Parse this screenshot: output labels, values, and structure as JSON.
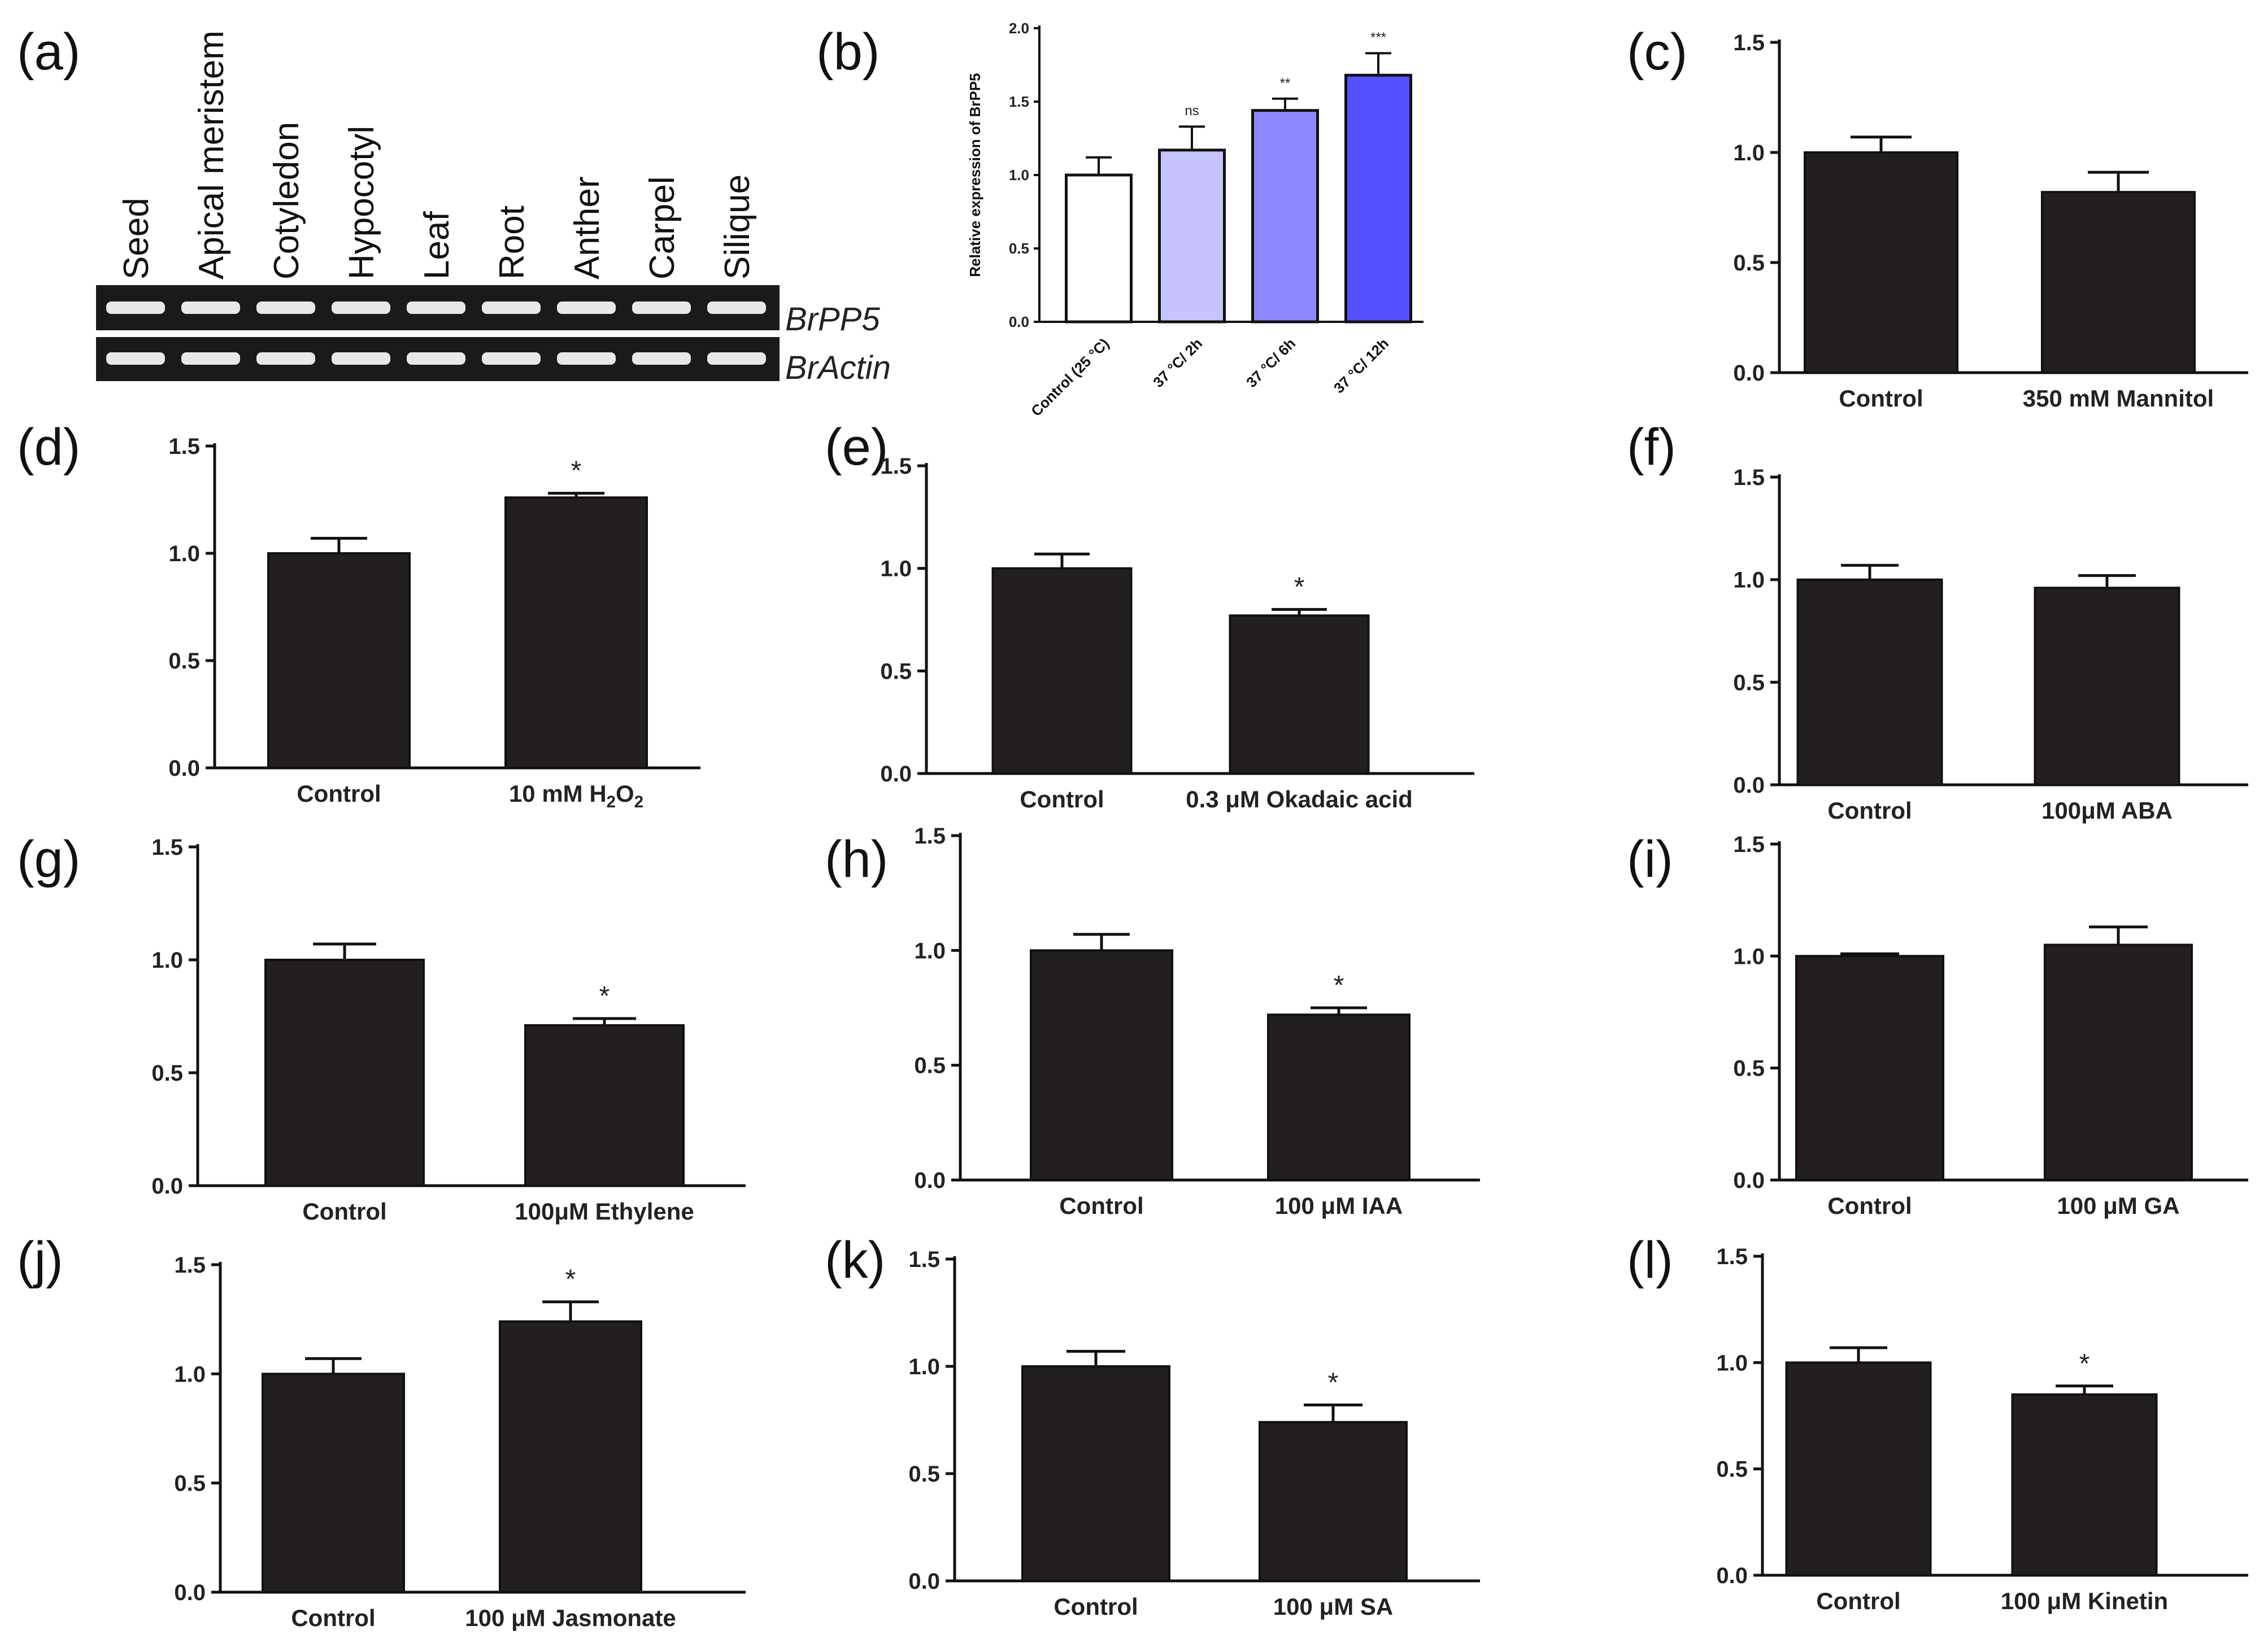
{
  "panel_a": {
    "letter": "(a)",
    "lanes": [
      "Seed",
      "Apical meristem",
      "Cotyledon",
      "Hypocotyl",
      "Leaf",
      "Root",
      "Anther",
      "Carpel",
      "Silique"
    ],
    "genes": [
      "BrPP5",
      "BrActin"
    ]
  },
  "chart_data": [
    {
      "id": "b",
      "letter": "(b)",
      "type": "bar",
      "ylabel": "Relative expression of BrPP5",
      "categories": [
        "Control (25 °C)",
        "37 °C/ 2h",
        "37 °C/ 6h",
        "37 °C/ 12h"
      ],
      "values": [
        1.0,
        1.17,
        1.44,
        1.68
      ],
      "errors": [
        0.12,
        0.16,
        0.08,
        0.15
      ],
      "annotations": [
        "",
        "ns",
        "**",
        "***"
      ],
      "colors": [
        "#ffffff",
        "#c6c3ff",
        "#8d88ff",
        "#5550ff"
      ],
      "ylim": [
        0,
        2.0
      ],
      "yticks": [
        "0.0",
        "0.5",
        "1.0",
        "1.5",
        "2.0"
      ]
    },
    {
      "id": "c",
      "letter": "(c)",
      "type": "bar",
      "categories": [
        "Control",
        "350 mM Mannitol"
      ],
      "values": [
        1.0,
        0.82
      ],
      "errors": [
        0.07,
        0.09
      ],
      "annotations": [
        "",
        ""
      ],
      "ylim": [
        0,
        1.5
      ],
      "yticks": [
        "0.0",
        "0.5",
        "1.0",
        "1.5"
      ]
    },
    {
      "id": "d",
      "letter": "(d)",
      "type": "bar",
      "categories": [
        "Control",
        "10 mM H2O2"
      ],
      "values": [
        1.0,
        1.26
      ],
      "errors": [
        0.07,
        0.02
      ],
      "annotations": [
        "",
        "*"
      ],
      "ylim": [
        0,
        1.5
      ],
      "yticks": [
        "0.0",
        "0.5",
        "1.0",
        "1.5"
      ]
    },
    {
      "id": "e",
      "letter": "(e)",
      "type": "bar",
      "categories": [
        "Control",
        "0.3 μM Okadaic acid"
      ],
      "values": [
        1.0,
        0.77
      ],
      "errors": [
        0.07,
        0.03
      ],
      "annotations": [
        "",
        "*"
      ],
      "ylim": [
        0,
        1.5
      ],
      "yticks": [
        "0.0",
        "0.5",
        "1.0",
        "1.5"
      ]
    },
    {
      "id": "f",
      "letter": "(f)",
      "type": "bar",
      "categories": [
        "Control",
        "100μM ABA"
      ],
      "values": [
        1.0,
        0.96
      ],
      "errors": [
        0.07,
        0.06
      ],
      "annotations": [
        "",
        ""
      ],
      "ylim": [
        0,
        1.5
      ],
      "yticks": [
        "0.0",
        "0.5",
        "1.0",
        "1.5"
      ]
    },
    {
      "id": "g",
      "letter": "(g)",
      "type": "bar",
      "categories": [
        "Control",
        "100μM Ethylene"
      ],
      "values": [
        1.0,
        0.71
      ],
      "errors": [
        0.07,
        0.03
      ],
      "annotations": [
        "",
        "*"
      ],
      "ylim": [
        0,
        1.5
      ],
      "yticks": [
        "0.0",
        "0.5",
        "1.0",
        "1.5"
      ]
    },
    {
      "id": "h",
      "letter": "(h)",
      "type": "bar",
      "categories": [
        "Control",
        "100 μM IAA"
      ],
      "values": [
        1.0,
        0.72
      ],
      "errors": [
        0.07,
        0.03
      ],
      "annotations": [
        "",
        "*"
      ],
      "ylim": [
        0,
        1.5
      ],
      "yticks": [
        "0.0",
        "0.5",
        "1.0",
        "1.5"
      ]
    },
    {
      "id": "i",
      "letter": "(i)",
      "type": "bar",
      "categories": [
        "Control",
        "100 μM GA"
      ],
      "values": [
        1.0,
        1.05
      ],
      "errors": [
        0.01,
        0.08
      ],
      "annotations": [
        "",
        ""
      ],
      "ylim": [
        0,
        1.5
      ],
      "yticks": [
        "0.0",
        "0.5",
        "1.0",
        "1.5"
      ]
    },
    {
      "id": "j",
      "letter": "(j)",
      "type": "bar",
      "categories": [
        "Control",
        "100 μM Jasmonate"
      ],
      "values": [
        1.0,
        1.24
      ],
      "errors": [
        0.07,
        0.09
      ],
      "annotations": [
        "",
        "*"
      ],
      "ylim": [
        0,
        1.5
      ],
      "yticks": [
        "0.0",
        "0.5",
        "1.0",
        "1.5"
      ]
    },
    {
      "id": "k",
      "letter": "(k)",
      "type": "bar",
      "categories": [
        "Control",
        "100 μM SA"
      ],
      "values": [
        1.0,
        0.74
      ],
      "errors": [
        0.07,
        0.08
      ],
      "annotations": [
        "",
        "*"
      ],
      "ylim": [
        0,
        1.5
      ],
      "yticks": [
        "0.0",
        "0.5",
        "1.0",
        "1.5"
      ]
    },
    {
      "id": "l",
      "letter": "(l)",
      "type": "bar",
      "categories": [
        "Control",
        "100 μM Kinetin"
      ],
      "values": [
        1.0,
        0.85
      ],
      "errors": [
        0.07,
        0.04
      ],
      "annotations": [
        "",
        "*"
      ],
      "ylim": [
        0,
        1.5
      ],
      "yticks": [
        "0.0",
        "0.5",
        "1.0",
        "1.5"
      ]
    }
  ]
}
